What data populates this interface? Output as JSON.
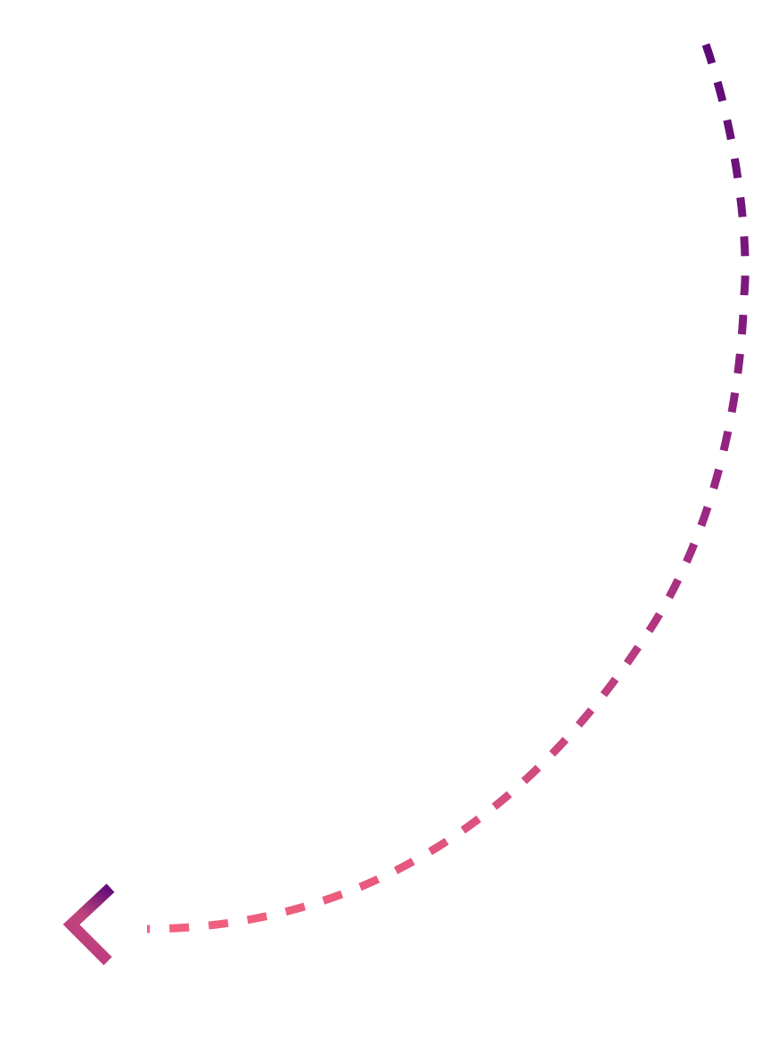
{
  "arrow": {
    "style": "dashed-curve",
    "direction": "left",
    "icon": "chevron-left-icon",
    "colors": {
      "start": "#5c0a78",
      "middle": "#9e2a82",
      "end": "#f2607e"
    }
  }
}
